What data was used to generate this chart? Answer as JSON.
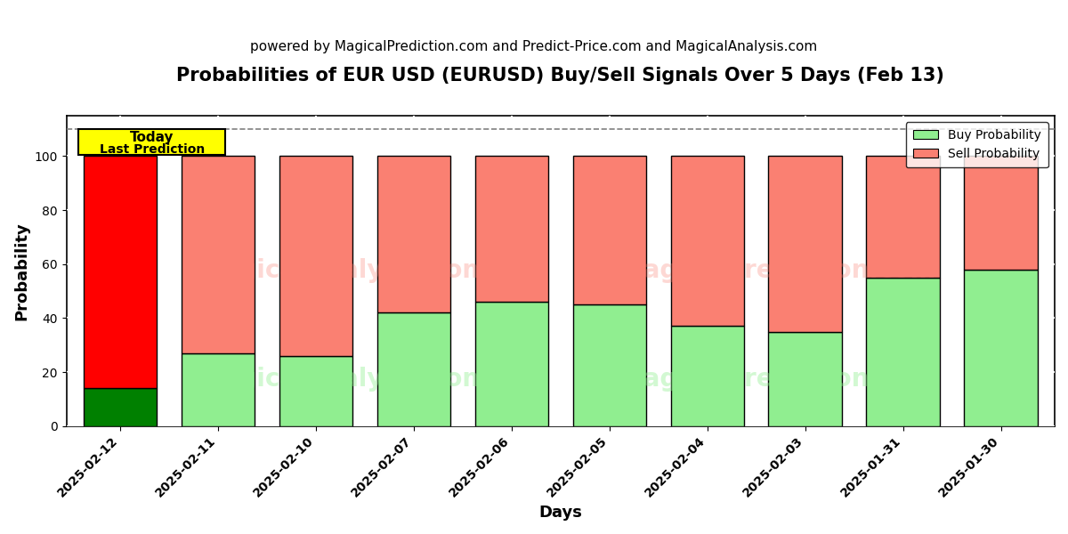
{
  "title": "Probabilities of EUR USD (EURUSD) Buy/Sell Signals Over 5 Days (Feb 13)",
  "subtitle": "powered by MagicalPrediction.com and Predict-Price.com and MagicalAnalysis.com",
  "xlabel": "Days",
  "ylabel": "Probability",
  "categories": [
    "2025-02-12",
    "2025-02-11",
    "2025-02-10",
    "2025-02-07",
    "2025-02-06",
    "2025-02-05",
    "2025-02-04",
    "2025-02-03",
    "2025-01-31",
    "2025-01-30"
  ],
  "buy_values": [
    14,
    27,
    26,
    42,
    46,
    45,
    37,
    35,
    55,
    58
  ],
  "sell_values": [
    86,
    73,
    74,
    58,
    54,
    55,
    63,
    65,
    45,
    42
  ],
  "buy_colors": [
    "#008000",
    "#90EE90",
    "#90EE90",
    "#90EE90",
    "#90EE90",
    "#90EE90",
    "#90EE90",
    "#90EE90",
    "#90EE90",
    "#90EE90"
  ],
  "sell_colors": [
    "#FF0000",
    "#FA8072",
    "#FA8072",
    "#FA8072",
    "#FA8072",
    "#FA8072",
    "#FA8072",
    "#FA8072",
    "#FA8072",
    "#FA8072"
  ],
  "today_box_color": "#FFFF00",
  "today_label1": "Today",
  "today_label2": "Last Prediction",
  "today_box_edge": "#000000",
  "watermark_text1": "MagicalAnalysis.com",
  "watermark_text2": "MagicalPrediction.com",
  "legend_buy_label": "Buy Probability",
  "legend_sell_label": "Sell Probability",
  "legend_buy_color": "#90EE90",
  "legend_sell_color": "#FA8072",
  "ylim": [
    0,
    115
  ],
  "yticks": [
    0,
    20,
    40,
    60,
    80,
    100
  ],
  "dashed_line_y": 110,
  "bar_edgecolor": "#000000",
  "bar_linewidth": 1.0,
  "grid_color": "#FFFFFF",
  "bg_color": "#FFFFFF",
  "plot_bg_color": "#FFFFFF",
  "title_fontsize": 15,
  "subtitle_fontsize": 11,
  "axis_label_fontsize": 13,
  "tick_fontsize": 10
}
